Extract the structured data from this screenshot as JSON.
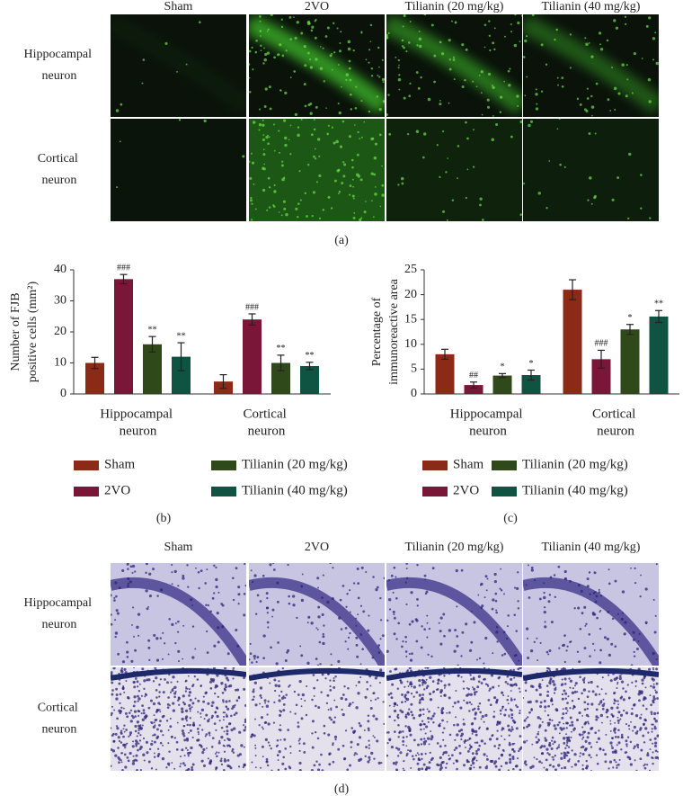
{
  "panel_a": {
    "columns": [
      "Sham",
      "2VO",
      "Tilianin (20 mg/kg)",
      "Tilianin (40 mg/kg)"
    ],
    "rows": [
      "Hippocampal neuron",
      "Cortical neuron"
    ],
    "label": "(a)"
  },
  "chart_data": [
    {
      "type": "bar",
      "label": "(b)",
      "ylabel": [
        "Number of FJB",
        "positive cells (mm²)"
      ],
      "categories": [
        "Hippocampal neuron",
        "Cortical neuron"
      ],
      "series": [
        {
          "name": "Sham",
          "color": "#8a2a17",
          "values": [
            10,
            4
          ],
          "errors": [
            1.8,
            2.2
          ],
          "annotations": [
            null,
            null
          ]
        },
        {
          "name": "2VO",
          "color": "#7a1738",
          "values": [
            37,
            24
          ],
          "errors": [
            1.5,
            1.8
          ],
          "annotations": [
            "###",
            "###"
          ]
        },
        {
          "name": "Tilianin (20 mg/kg)",
          "color": "#30491a",
          "values": [
            16,
            10
          ],
          "errors": [
            2.5,
            2.5
          ],
          "annotations": [
            "**",
            "**"
          ]
        },
        {
          "name": "Tilianin (40 mg/kg)",
          "color": "#0f5342",
          "values": [
            12,
            9
          ],
          "errors": [
            4.5,
            1.2
          ],
          "annotations": [
            "**",
            "**"
          ]
        }
      ],
      "ylim": [
        0,
        40
      ],
      "yticks": [
        0,
        10,
        20,
        30,
        40
      ]
    },
    {
      "type": "bar",
      "label": "(c)",
      "ylabel": [
        "Percentage of",
        "immunoreactive area"
      ],
      "categories": [
        "Hippocampal neuron",
        "Cortical neuron"
      ],
      "series": [
        {
          "name": "Sham",
          "color": "#8a2a17",
          "values": [
            8,
            21
          ],
          "errors": [
            1,
            2
          ],
          "annotations": [
            null,
            null
          ]
        },
        {
          "name": "2VO",
          "color": "#7a1738",
          "values": [
            1.8,
            7
          ],
          "errors": [
            0.6,
            1.8
          ],
          "annotations": [
            "##",
            "###"
          ]
        },
        {
          "name": "Tilianin (20 mg/kg)",
          "color": "#30491a",
          "values": [
            3.7,
            13
          ],
          "errors": [
            0.4,
            1
          ],
          "annotations": [
            "*",
            "*"
          ]
        },
        {
          "name": "Tilianin (40 mg/kg)",
          "color": "#0f5342",
          "values": [
            3.8,
            15.6
          ],
          "errors": [
            1,
            1.2
          ],
          "annotations": [
            "*",
            "**"
          ]
        }
      ],
      "ylim": [
        0,
        25
      ],
      "yticks": [
        0,
        5,
        10,
        15,
        20,
        25
      ]
    }
  ],
  "panel_d": {
    "columns": [
      "Sham",
      "2VO",
      "Tilianin (20 mg/kg)",
      "Tilianin (40 mg/kg)"
    ],
    "rows": [
      "Hippocampal neuron",
      "Cortical neuron"
    ],
    "label": "(d)"
  }
}
